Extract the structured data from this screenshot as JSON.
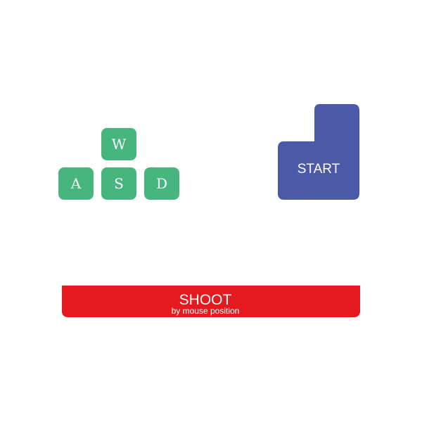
{
  "colors": {
    "movement_key": "#47b57e",
    "start_key": "#4a5aa8",
    "shoot_bar": "#e41a1f",
    "background": "#ffffff"
  },
  "movement_keys": {
    "up": "W",
    "left": "A",
    "down": "S",
    "right": "D"
  },
  "start_key": {
    "label": "START"
  },
  "shoot": {
    "label": "SHOOT",
    "sublabel": "by mouse position"
  }
}
